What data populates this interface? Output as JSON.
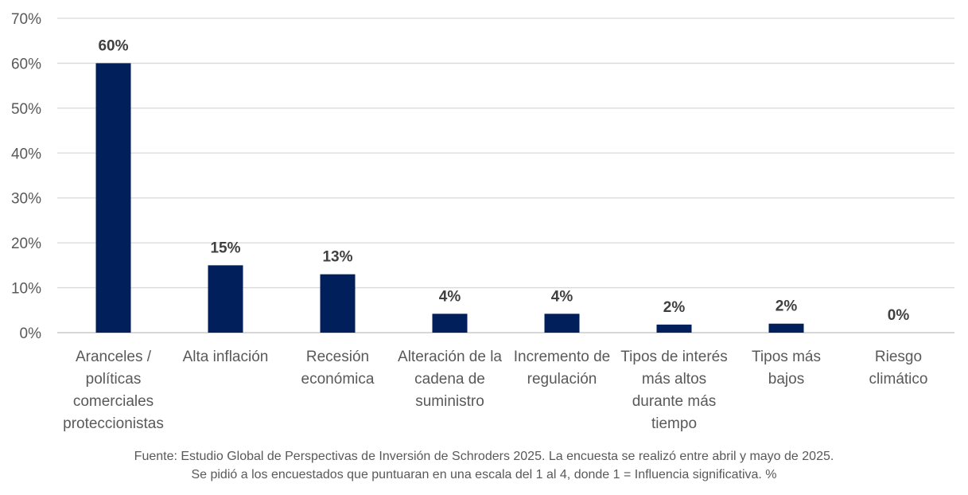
{
  "chart_data": {
    "type": "bar",
    "categories": [
      [
        "Aranceles /",
        "políticas",
        "comerciales",
        "proteccionistas"
      ],
      [
        "Alta inflación"
      ],
      [
        "Recesión",
        "económica"
      ],
      [
        "Alteración de la",
        "cadena de",
        "suministro"
      ],
      [
        "Incremento de",
        "regulación"
      ],
      [
        "Tipos de interés",
        "más altos",
        "durante más",
        "tiempo"
      ],
      [
        "Tipos más",
        "bajos"
      ],
      [
        "Riesgo",
        "climático"
      ]
    ],
    "values": [
      60,
      15,
      13,
      4.2,
      4.2,
      1.8,
      2,
      0
    ],
    "data_labels": [
      "60%",
      "15%",
      "13%",
      "4%",
      "4%",
      "2%",
      "2%",
      "0%"
    ],
    "ylim": [
      0,
      70
    ],
    "yticks": [
      0,
      10,
      20,
      30,
      40,
      50,
      60,
      70
    ],
    "ytick_labels": [
      "0%",
      "10%",
      "20%",
      "30%",
      "40%",
      "50%",
      "60%",
      "70%"
    ],
    "grid": true,
    "bar_color": "#001F5B",
    "grid_color": "#D9D9D9"
  },
  "source": {
    "line1": "Fuente: Estudio Global de Perspectivas de Inversión de Schroders 2025. La encuesta se realizó entre abril y mayo de 2025.",
    "line2": "Se pidió a los encuestados que puntuaran en una escala del 1 al 4, donde 1 = Influencia significativa. %"
  }
}
